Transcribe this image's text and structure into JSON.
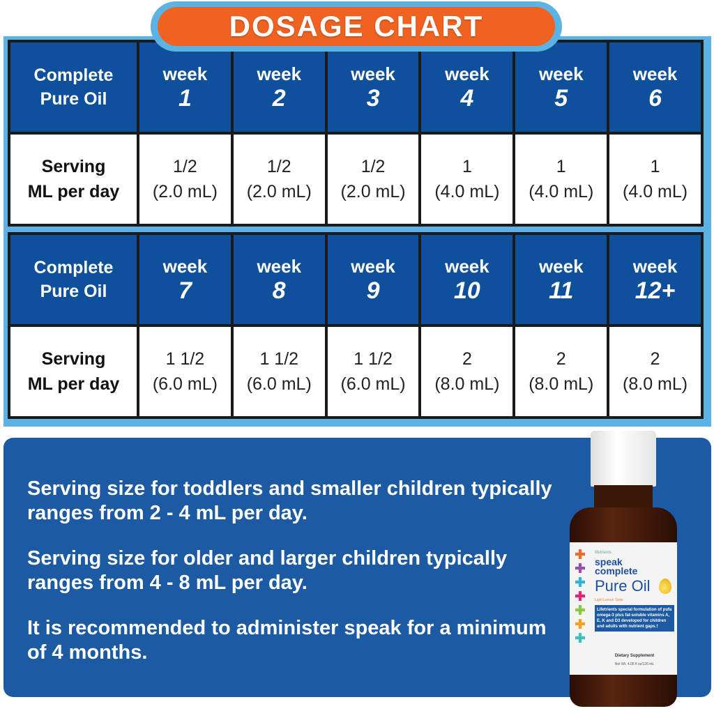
{
  "title": "DOSAGE CHART",
  "tables": [
    {
      "row_label": [
        "Complete",
        "Pure Oil"
      ],
      "serving_label": [
        "Serving",
        "ML per day"
      ],
      "weeks": [
        {
          "word": "week",
          "num": "1",
          "amount": "1/2",
          "ml": "(2.0 mL)"
        },
        {
          "word": "week",
          "num": "2",
          "amount": "1/2",
          "ml": "(2.0 mL)"
        },
        {
          "word": "week",
          "num": "3",
          "amount": "1/2",
          "ml": "(2.0 mL)"
        },
        {
          "word": "week",
          "num": "4",
          "amount": "1",
          "ml": "(4.0 mL)"
        },
        {
          "word": "week",
          "num": "5",
          "amount": "1",
          "ml": "(4.0 mL)"
        },
        {
          "word": "week",
          "num": "6",
          "amount": "1",
          "ml": "(4.0 mL)"
        }
      ]
    },
    {
      "row_label": [
        "Complete",
        "Pure Oil"
      ],
      "serving_label": [
        "Serving",
        "ML per day"
      ],
      "weeks": [
        {
          "word": "week",
          "num": "7",
          "amount": "1 1/2",
          "ml": "(6.0 mL)"
        },
        {
          "word": "week",
          "num": "8",
          "amount": "1 1/2",
          "ml": "(6.0 mL)"
        },
        {
          "word": "week",
          "num": "9",
          "amount": "1 1/2",
          "ml": "(6.0 mL)"
        },
        {
          "word": "week",
          "num": "10",
          "amount": "2",
          "ml": "(8.0 mL)"
        },
        {
          "word": "week",
          "num": "11",
          "amount": "2",
          "ml": "(8.0 mL)"
        },
        {
          "word": "week",
          "num": "12+",
          "amount": "2",
          "ml": "(8.0 mL)"
        }
      ]
    }
  ],
  "info": [
    "Serving size for toddlers and smaller children typically ranges from 2 - 4 mL per day.",
    "Serving size for older and larger children typically ranges from 4 - 8 mL per day.",
    "It is recommended to administer speak for a minimum of 4 months."
  ],
  "bottle": {
    "brand": "lifetrients",
    "name1": "speak",
    "name2": "complete",
    "product": "Pure Oil",
    "taste": "Light Lemon Taste",
    "description": "Lifetrients special formulation of pufa omega-3 plus fat-soluble vitamins A, E, K and D3 developed for children and adults with nutrient gaps.†",
    "type": "Dietary Supplement",
    "net": "Net Wt. 4.05 fl oz/120 mL",
    "cross_colors": [
      "#f06a2a",
      "#9a4fb0",
      "#2cb5d8",
      "#e0267a",
      "#8cc63f",
      "#f7a21b",
      "#3cc0c0"
    ]
  },
  "colors": {
    "header": "#0e509c",
    "frame": "#5cb2e2",
    "title": "#f0621f",
    "panel": "#1c5aa3"
  }
}
